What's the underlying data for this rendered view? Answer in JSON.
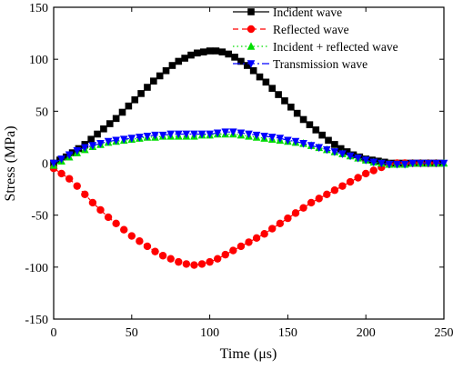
{
  "chart_data": {
    "type": "line",
    "xlabel": "Time (μs)",
    "ylabel": "Stress (MPa)",
    "xlim": [
      0,
      250
    ],
    "ylim": [
      -150,
      150
    ],
    "xticks": [
      "0",
      "50",
      "100",
      "150",
      "200",
      "250"
    ],
    "yticks": [
      "150",
      "100",
      "50",
      "0",
      "-50",
      "-100",
      "-150"
    ],
    "xtick_values": [
      0,
      50,
      100,
      150,
      200,
      250
    ],
    "ytick_values": [
      150,
      100,
      50,
      0,
      -50,
      -100,
      -150
    ],
    "grid": false,
    "legend_position": "top-right",
    "series": [
      {
        "name": "Incident wave",
        "color": "#000000",
        "line_style": "solid",
        "marker": "square",
        "x": [
          0,
          4,
          8,
          12,
          16,
          20,
          24,
          28,
          32,
          36,
          40,
          44,
          48,
          52,
          56,
          60,
          64,
          68,
          72,
          76,
          80,
          84,
          88,
          92,
          96,
          100,
          104,
          108,
          112,
          116,
          120,
          124,
          128,
          132,
          136,
          140,
          144,
          148,
          152,
          156,
          160,
          164,
          168,
          172,
          176,
          180,
          184,
          188,
          192,
          196,
          200,
          204,
          208,
          212,
          216,
          220,
          224,
          228,
          232,
          236,
          240,
          244,
          248
        ],
        "y": [
          0,
          3,
          6,
          10,
          14,
          18,
          23,
          28,
          33,
          38,
          43,
          49,
          55,
          61,
          67,
          73,
          79,
          84,
          89,
          94,
          98,
          101,
          104,
          106,
          107,
          108,
          108,
          107,
          105,
          102,
          98,
          94,
          89,
          83,
          78,
          72,
          66,
          60,
          54,
          48,
          42,
          37,
          32,
          27,
          22,
          18,
          14,
          11,
          8,
          6,
          4,
          3,
          2,
          1,
          0,
          0,
          0,
          0,
          0,
          0,
          0,
          0,
          0
        ]
      },
      {
        "name": "Reflected wave",
        "color": "#ff0000",
        "line_style": "dashed",
        "marker": "circle",
        "x": [
          0,
          5,
          10,
          15,
          20,
          25,
          30,
          35,
          40,
          45,
          50,
          55,
          60,
          65,
          70,
          75,
          80,
          85,
          90,
          95,
          100,
          105,
          110,
          115,
          120,
          125,
          130,
          135,
          140,
          145,
          150,
          155,
          160,
          165,
          170,
          175,
          180,
          185,
          190,
          195,
          200,
          205,
          210,
          215,
          220,
          225,
          230,
          235,
          240,
          245
        ],
        "y": [
          -5,
          -10,
          -15,
          -22,
          -30,
          -38,
          -45,
          -52,
          -58,
          -64,
          -70,
          -75,
          -80,
          -85,
          -89,
          -92,
          -95,
          -97,
          -98,
          -97,
          -95,
          -92,
          -88,
          -84,
          -80,
          -76,
          -72,
          -68,
          -63,
          -58,
          -53,
          -48,
          -43,
          -38,
          -34,
          -30,
          -26,
          -22,
          -18,
          -14,
          -10,
          -7,
          -4,
          -1,
          0,
          0,
          0,
          0,
          0,
          0
        ]
      },
      {
        "name": "Incident + reflected wave",
        "color": "#00dd00",
        "line_style": "dotted",
        "marker": "triangle-up",
        "x": [
          0,
          5,
          10,
          15,
          20,
          25,
          30,
          35,
          40,
          45,
          50,
          55,
          60,
          65,
          70,
          75,
          80,
          85,
          90,
          95,
          100,
          105,
          110,
          115,
          120,
          125,
          130,
          135,
          140,
          145,
          150,
          155,
          160,
          165,
          170,
          175,
          180,
          185,
          190,
          195,
          200,
          205,
          210,
          215,
          220,
          225,
          230,
          235,
          240,
          245,
          250
        ],
        "y": [
          -2,
          2,
          6,
          10,
          13,
          16,
          18,
          20,
          21,
          22,
          23,
          24,
          25,
          25,
          26,
          26,
          26,
          26,
          26,
          27,
          27,
          28,
          28,
          28,
          27,
          26,
          25,
          24,
          23,
          22,
          21,
          20,
          19,
          17,
          15,
          13,
          11,
          9,
          7,
          5,
          3,
          1,
          0,
          -1,
          -1,
          -1,
          0,
          0,
          0,
          0,
          0
        ]
      },
      {
        "name": "Transmission wave",
        "color": "#0000ff",
        "line_style": "dashdot",
        "marker": "triangle-down",
        "x": [
          0,
          5,
          10,
          15,
          20,
          25,
          30,
          35,
          40,
          45,
          50,
          55,
          60,
          65,
          70,
          75,
          80,
          85,
          90,
          95,
          100,
          105,
          110,
          115,
          120,
          125,
          130,
          135,
          140,
          145,
          150,
          155,
          160,
          165,
          170,
          175,
          180,
          185,
          190,
          195,
          200,
          205,
          210,
          215,
          220,
          225,
          230,
          235,
          240,
          245,
          250
        ],
        "y": [
          0,
          4,
          8,
          12,
          15,
          17,
          19,
          21,
          22,
          23,
          24,
          25,
          26,
          27,
          27,
          28,
          28,
          28,
          28,
          28,
          28,
          29,
          30,
          30,
          29,
          28,
          27,
          26,
          25,
          24,
          22,
          21,
          19,
          17,
          15,
          13,
          11,
          9,
          7,
          5,
          3,
          1,
          0,
          -1,
          -1,
          -1,
          0,
          0,
          0,
          0,
          0
        ]
      }
    ]
  }
}
